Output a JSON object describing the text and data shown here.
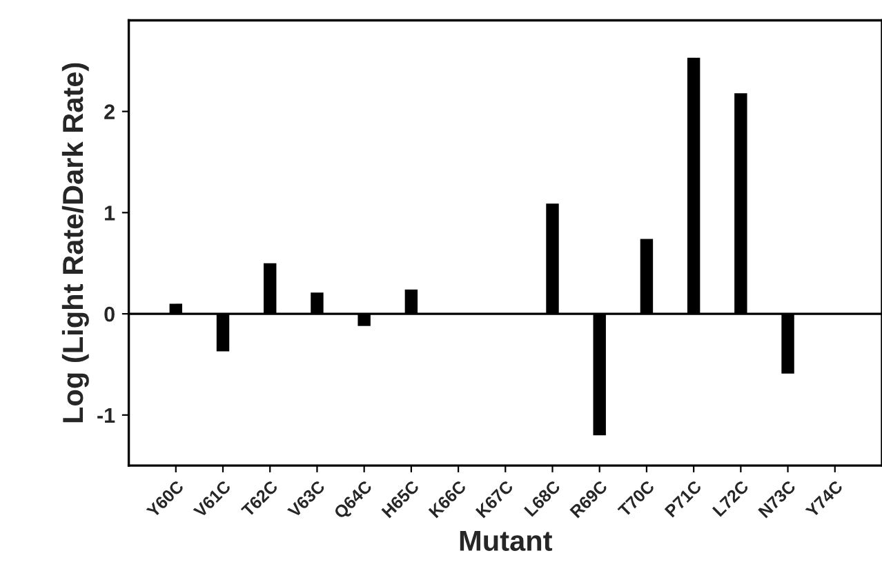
{
  "chart_data": {
    "type": "bar",
    "categories": [
      "Y60C",
      "V61C",
      "T62C",
      "V63C",
      "Q64C",
      "H65C",
      "K66C",
      "K67C",
      "L68C",
      "R69C",
      "T70C",
      "P71C",
      "L72C",
      "N73C",
      "Y74C"
    ],
    "values": [
      0.1,
      -0.37,
      0.5,
      0.21,
      -0.12,
      0.24,
      0,
      0,
      1.09,
      -1.2,
      0.74,
      2.53,
      2.18,
      -0.59,
      0
    ],
    "color": "#000000",
    "xlabel": "Mutant",
    "ylabel": "Log (Light Rate/Dark Rate)",
    "ylim": [
      -1.5,
      2.9
    ],
    "yticks": [
      -1,
      0,
      1,
      2
    ],
    "ref_lines": [
      {
        "axis": "y",
        "value": 0,
        "color": "#000000"
      }
    ],
    "grid": false,
    "legend": false
  }
}
